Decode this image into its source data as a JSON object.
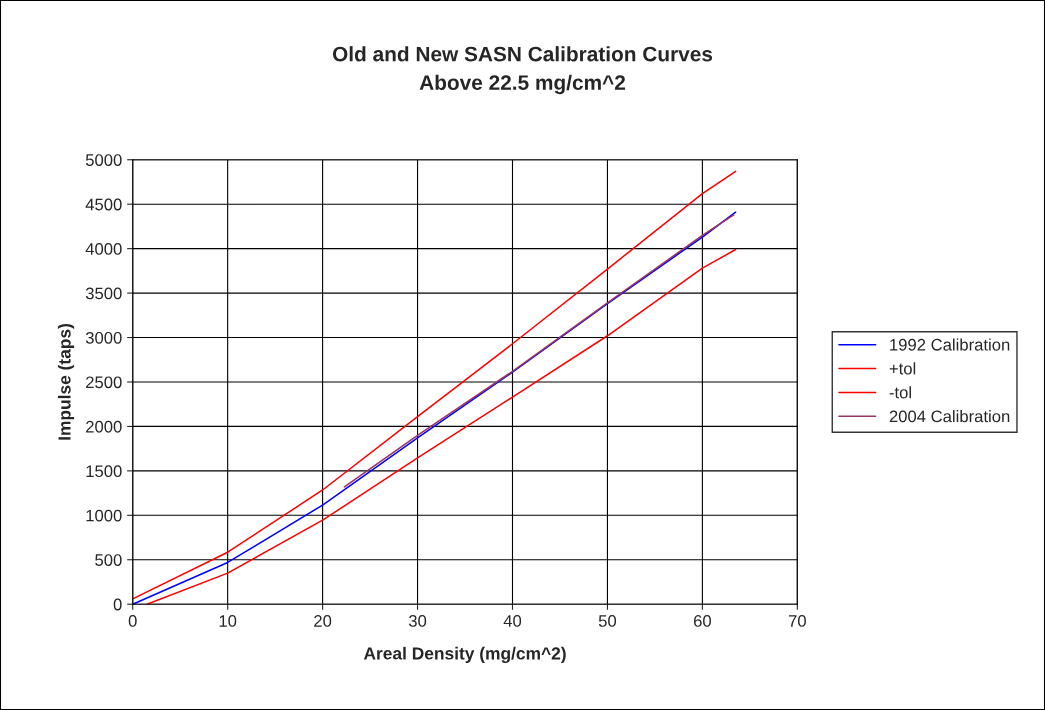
{
  "chart_data": {
    "type": "line",
    "title": "Old and New SASN Calibration Curves\nAbove 22.5 mg/cm^2",
    "xlabel": "Areal Density (mg/cm^2)",
    "ylabel": "Impulse (taps)",
    "xlim": [
      0,
      70
    ],
    "xticks": [
      0,
      10,
      20,
      30,
      40,
      50,
      60,
      70
    ],
    "ylim": [
      0,
      5000
    ],
    "yticks": [
      0,
      500,
      1000,
      1500,
      2000,
      2500,
      3000,
      3500,
      4000,
      4500,
      5000
    ],
    "grid": true,
    "legend": "right",
    "marker": "none",
    "line_style": "solid",
    "series": [
      {
        "name": "1992 Calibration",
        "color": "#0000ff",
        "x": [
          0,
          10,
          20,
          30,
          40,
          50,
          60,
          63.5
        ],
        "values": [
          0,
          470,
          1115,
          1870,
          2610,
          3380,
          4130,
          4410
        ]
      },
      {
        "name": "+tol",
        "color": "#ff0000",
        "x": [
          0,
          10,
          20,
          30,
          40,
          50,
          60,
          63.5
        ],
        "values": [
          60,
          585,
          1285,
          2110,
          2930,
          3770,
          4620,
          4870
        ]
      },
      {
        "name": "-tol",
        "color": "#ff0000",
        "x": [
          1.5,
          10,
          20,
          30,
          40,
          50,
          60,
          63.5
        ],
        "values": [
          0,
          350,
          945,
          1645,
          2330,
          3020,
          3780,
          3990
        ]
      },
      {
        "name": "2004 Calibration",
        "color": "#993366",
        "x": [
          22.3,
          30,
          40,
          50,
          60,
          63.3
        ],
        "values": [
          1320,
          1900,
          2620,
          3390,
          4150,
          4380
        ]
      }
    ]
  }
}
